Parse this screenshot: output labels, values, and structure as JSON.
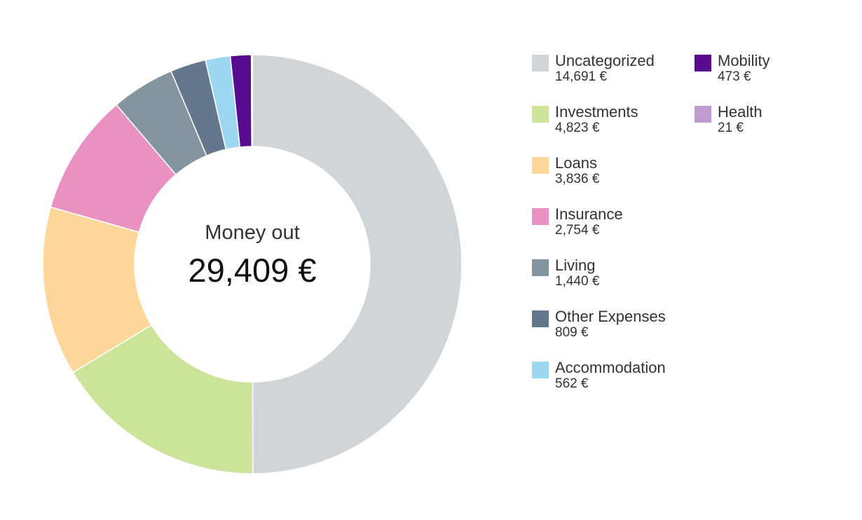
{
  "chart_data": {
    "type": "pie",
    "center_title": "Money out",
    "center_total": "29,409 €",
    "slices": [
      {
        "name": "Uncategorized",
        "value": 14691,
        "value_label": "14,691 €",
        "color": "#cfd5d9"
      },
      {
        "name": "Investments",
        "value": 4823,
        "value_label": "4,823 €",
        "color": "#cce39a"
      },
      {
        "name": "Loans",
        "value": 3836,
        "value_label": "3,836 €",
        "color": "#fed89a"
      },
      {
        "name": "Insurance",
        "value": 2754,
        "value_label": "2,754 €",
        "color": "#e991c2"
      },
      {
        "name": "Living",
        "value": 1440,
        "value_label": "1,440 €",
        "color": "#84959f"
      },
      {
        "name": "Other Expenses",
        "value": 809,
        "value_label": "809 €",
        "color": "#65778c"
      },
      {
        "name": "Accommodation",
        "value": 562,
        "value_label": "562 €",
        "color": "#9dd8f3"
      },
      {
        "name": "Mobility",
        "value": 473,
        "value_label": "473 €",
        "color": "#580b8f"
      },
      {
        "name": "Health",
        "value": 21,
        "value_label": "21 €",
        "color": "#bf9bd2"
      }
    ],
    "legend_placement": "right"
  }
}
